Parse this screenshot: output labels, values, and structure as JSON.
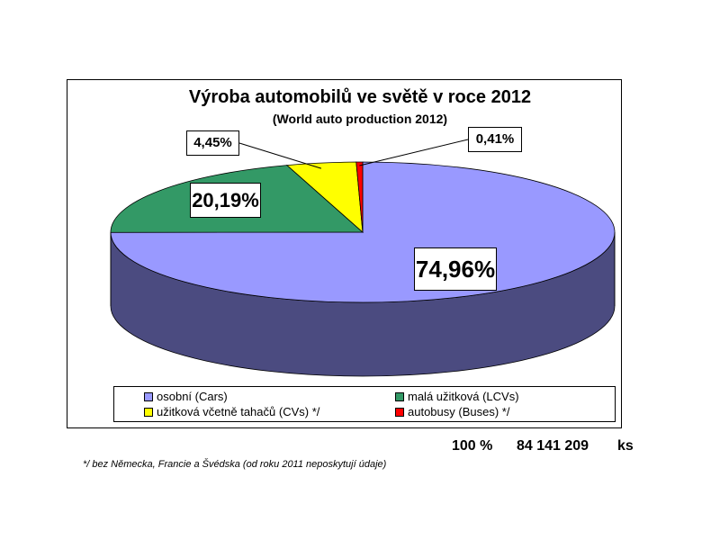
{
  "chart_data": {
    "type": "pie",
    "title": "Výroba automobilů ve světě v roce 2012",
    "subtitle": "(World auto production 2012)",
    "slices": [
      {
        "name": "osobní (Cars)",
        "value": 74.96,
        "label": "74,96%",
        "color": "#9999ff",
        "side_color": "#4b4b80"
      },
      {
        "name": "malá užitková (LCVs)",
        "value": 20.19,
        "label": "20,19%",
        "color": "#339966",
        "side_color": "#1f5e3e"
      },
      {
        "name": "užitková včetně tahačů (CVs) */",
        "value": 4.45,
        "label": "4,45%",
        "color": "#ffff00",
        "side_color": "#999900"
      },
      {
        "name": "autobusy (Buses) */",
        "value": 0.41,
        "label": "0,41%",
        "color": "#ff0000",
        "side_color": "#990000"
      }
    ],
    "legend_position": "bottom"
  },
  "footer": {
    "total_percent": "100 %",
    "total_count": "84 141 209",
    "unit": "ks",
    "footnote": "*/ bez Německa, Francie a Švédska (od roku 2011 neposkytují údaje)"
  }
}
